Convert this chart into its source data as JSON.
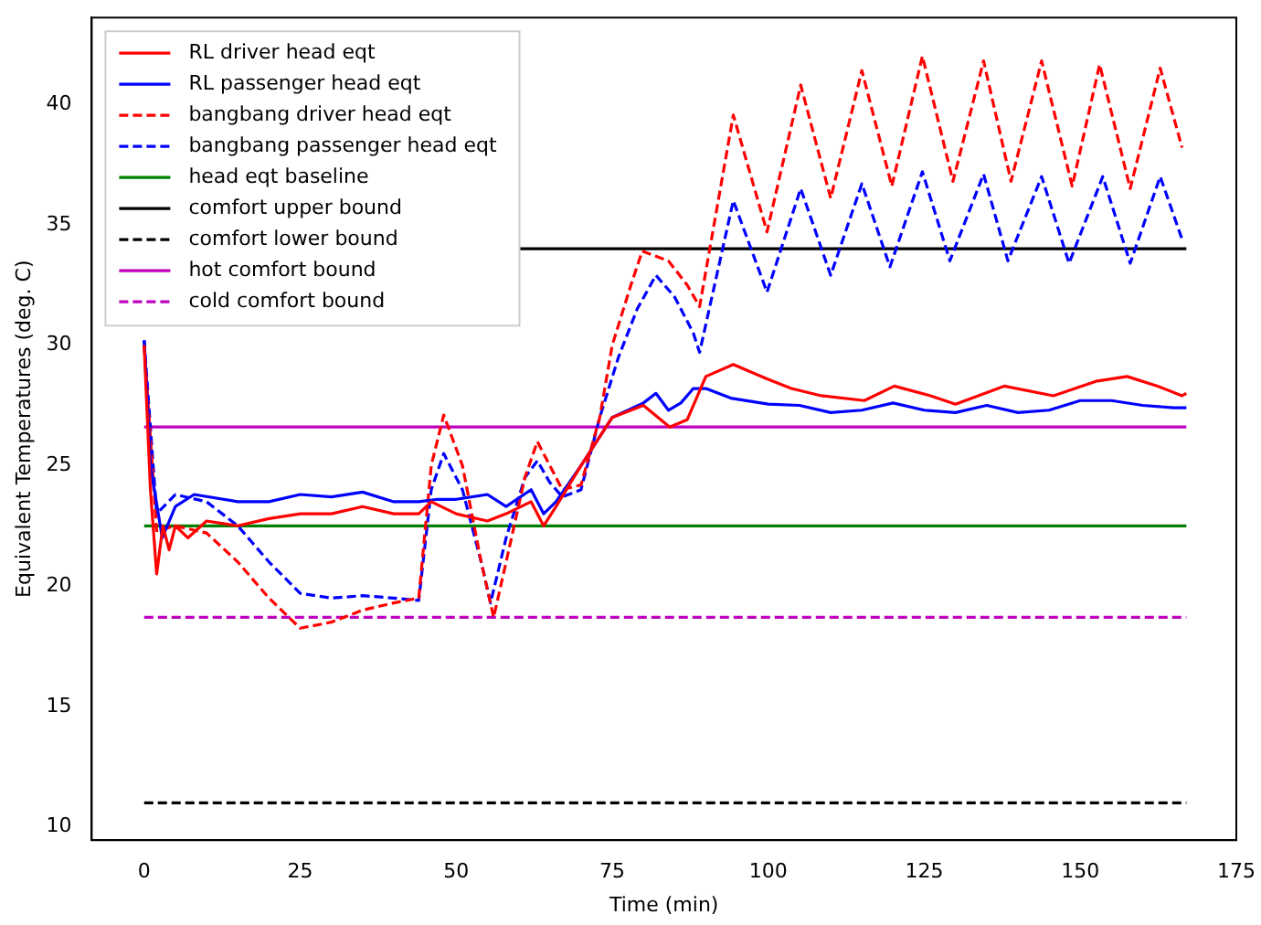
{
  "chart_data": {
    "type": "line",
    "xlabel": "Time (min)",
    "ylabel": "Equivalent Temperatures (deg. C)",
    "xlim": [
      -8.4,
      175
    ],
    "ylim": [
      9.45,
      43.6
    ],
    "xticks": [
      0,
      25,
      50,
      75,
      100,
      125,
      150,
      175
    ],
    "yticks": [
      10,
      15,
      20,
      25,
      30,
      35,
      40
    ],
    "grid": false,
    "legend": "top left",
    "marker": "none",
    "series": [
      {
        "name": "RL driver head eqt",
        "color": "#ff0000",
        "line_style": "solid",
        "x": [
          0,
          1,
          2,
          3,
          4,
          5,
          7,
          10,
          15,
          20,
          25,
          30,
          35,
          40,
          44,
          46,
          50,
          55,
          58,
          62,
          64,
          66,
          70,
          75,
          80,
          84.2,
          87,
          90,
          94.4,
          99.8,
          103.7,
          108.5,
          115.4,
          120.2,
          126,
          130,
          137.8,
          145.7,
          152.5,
          157.5,
          162.4,
          166.3,
          167
        ],
        "values": [
          30,
          24,
          20.5,
          22.5,
          21.5,
          22.5,
          22,
          22.7,
          22.5,
          22.8,
          23,
          23,
          23.3,
          23,
          23,
          23.5,
          23,
          22.7,
          23,
          23.5,
          22.5,
          23.3,
          25,
          27,
          27.5,
          26.6,
          26.9,
          28.7,
          29.2,
          28.6,
          28.2,
          27.9,
          27.7,
          28.3,
          27.9,
          27.55,
          28.3,
          27.9,
          28.5,
          28.7,
          28.3,
          27.9,
          28
        ]
      },
      {
        "name": "RL passenger head eqt",
        "color": "#0000ff",
        "line_style": "solid",
        "x": [
          0,
          1,
          2.9,
          5,
          8,
          15,
          20,
          25,
          30,
          35,
          40,
          44,
          47,
          50,
          55,
          58,
          62,
          64,
          66,
          70,
          75,
          80,
          82,
          84,
          86,
          88,
          90,
          94,
          100,
          105,
          110,
          115,
          120,
          125,
          130,
          135,
          140,
          145,
          150,
          155,
          160,
          165,
          167
        ],
        "values": [
          30.2,
          25,
          22,
          23.3,
          23.8,
          23.5,
          23.5,
          23.8,
          23.7,
          23.9,
          23.5,
          23.5,
          23.6,
          23.6,
          23.8,
          23.3,
          24,
          23,
          23.5,
          25,
          27,
          27.6,
          28,
          27.3,
          27.6,
          28.2,
          28.2,
          27.8,
          27.55,
          27.5,
          27.2,
          27.3,
          27.6,
          27.3,
          27.2,
          27.5,
          27.2,
          27.3,
          27.7,
          27.7,
          27.5,
          27.4,
          27.4
        ]
      },
      {
        "name": "bangbang driver head eqt",
        "color": "#ff0000",
        "line_style": "dashed",
        "x": [
          0,
          2,
          5,
          10,
          15,
          20,
          25,
          30,
          35,
          40,
          44,
          46,
          48,
          51,
          54,
          56,
          58,
          61,
          63,
          65,
          67,
          70,
          73,
          75,
          78,
          79.8,
          84,
          87,
          89,
          94.4,
          99.8,
          105.2,
          110,
          115,
          119.8,
          124.7,
          129.6,
          134.5,
          138.9,
          143.8,
          148.7,
          153.1,
          158,
          162.8,
          166.3
        ],
        "values": [
          30,
          22.3,
          22.5,
          22.2,
          21,
          19.5,
          18.25,
          18.5,
          19,
          19.3,
          19.5,
          25,
          27.1,
          25,
          21,
          18.7,
          21,
          24.5,
          26,
          25,
          24,
          24.2,
          27,
          30,
          32.5,
          33.9,
          33.5,
          32.5,
          31.6,
          39.55,
          34.7,
          40.8,
          36.1,
          41.4,
          36.6,
          42,
          36.8,
          41.8,
          36.8,
          41.8,
          36.6,
          41.65,
          36.5,
          41.5,
          38.2
        ]
      },
      {
        "name": "bangbang passenger head eqt",
        "color": "#0000ff",
        "line_style": "dashed",
        "x": [
          0,
          2,
          5,
          10,
          15,
          20,
          25,
          30,
          35,
          40,
          44,
          46,
          48,
          51,
          54,
          55.5,
          58,
          61,
          63,
          65,
          67,
          70,
          73,
          76,
          79,
          82,
          85,
          88,
          89,
          94.4,
          99.8,
          105.2,
          110,
          115,
          119.5,
          124.7,
          129.1,
          134.5,
          138.4,
          143.8,
          148.2,
          153.6,
          158,
          162.8,
          166.3
        ],
        "values": [
          30.2,
          23,
          23.8,
          23.5,
          22.5,
          21,
          19.7,
          19.5,
          19.6,
          19.5,
          19.4,
          24,
          25.5,
          24,
          21,
          19.3,
          22,
          24.5,
          25.2,
          24.3,
          23.7,
          24,
          27,
          29.5,
          31.5,
          32.9,
          32,
          30.5,
          29.7,
          36,
          32.2,
          36.5,
          32.9,
          36.7,
          33.25,
          37.2,
          33.5,
          37.1,
          33.5,
          37,
          33.4,
          37,
          33.4,
          37,
          34.4
        ]
      },
      {
        "name": "head eqt baseline",
        "color": "#008000",
        "line_style": "solid",
        "x": [
          0,
          167
        ],
        "values": [
          22.5,
          22.5
        ]
      },
      {
        "name": "comfort upper bound",
        "color": "#000000",
        "line_style": "solid",
        "x": [
          60,
          167
        ],
        "values": [
          34,
          34
        ]
      },
      {
        "name": "comfort lower bound",
        "color": "#000000",
        "line_style": "dashed",
        "x": [
          0,
          167
        ],
        "values": [
          11,
          11
        ]
      },
      {
        "name": "hot comfort bound",
        "color": "#bf00bf",
        "line_style": "solid",
        "x": [
          0,
          167
        ],
        "values": [
          26.6,
          26.6
        ]
      },
      {
        "name": "cold comfort bound",
        "color": "#bf00bf",
        "line_style": "dashed",
        "x": [
          0,
          167
        ],
        "values": [
          18.7,
          18.7
        ]
      }
    ]
  }
}
